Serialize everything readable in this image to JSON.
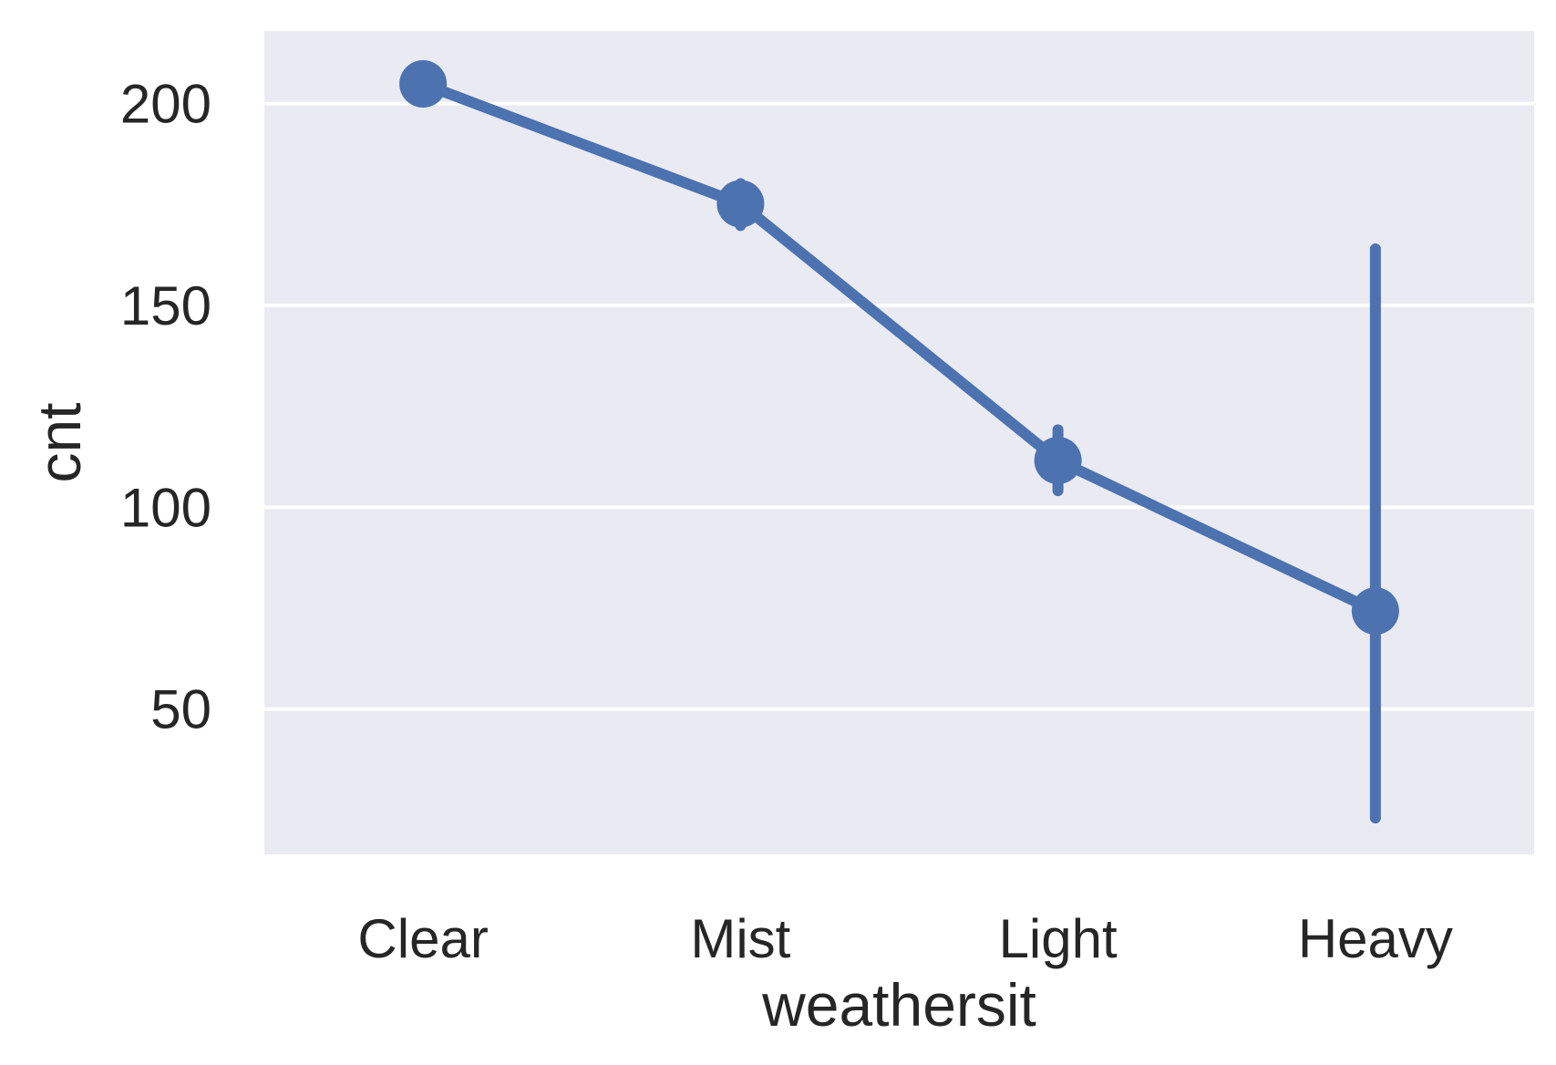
{
  "chart_data": {
    "type": "point",
    "xlabel": "weathersit",
    "ylabel": "cnt",
    "categories": [
      "Clear",
      "Mist",
      "Light",
      "Heavy"
    ],
    "series": [
      {
        "values": [
          204.9,
          175.2,
          111.6,
          74.3
        ],
        "ci_low": [
          202.8,
          169.8,
          104.1,
          23.0
        ],
        "ci_high": [
          207.2,
          180.2,
          119.2,
          164.0
        ]
      }
    ],
    "yticks": [
      50,
      100,
      150,
      200
    ],
    "ytick_labels": [
      "50",
      "100",
      "150",
      "200"
    ],
    "ylim": [
      14,
      218
    ],
    "grid": true,
    "colors": {
      "series": "#4c72b0",
      "plot_background": "#eaeaf2",
      "grid": "#ffffff",
      "text": "#262626"
    }
  }
}
